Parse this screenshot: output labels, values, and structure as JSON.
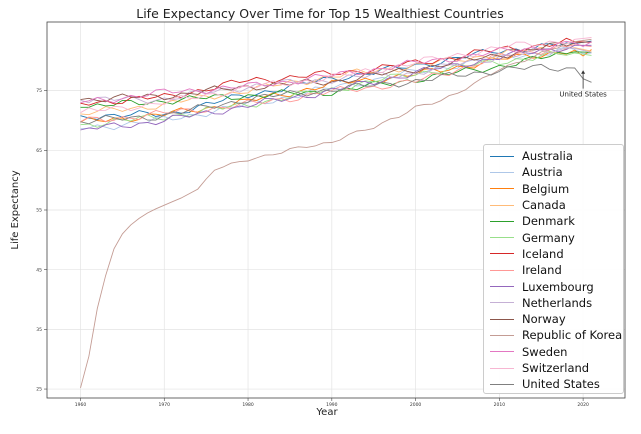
{
  "chart_data": {
    "type": "line",
    "title": "Life Expectancy Over Time for Top 15 Wealthiest Countries",
    "xlabel": "Year",
    "ylabel": "Life Expectancy",
    "xlim": [
      1956,
      2025
    ],
    "ylim": [
      23.5,
      86.5
    ],
    "x_ticks": [
      1960,
      1970,
      1980,
      1990,
      2000,
      2010,
      2020
    ],
    "y_ticks": [
      25,
      35,
      45,
      55,
      65,
      75
    ],
    "grid": true,
    "legend_position": "lower-right",
    "annotation": {
      "text": "United States",
      "x": 2020,
      "y": 78.5,
      "text_x": 2020,
      "text_y": 74
    },
    "series": [
      {
        "name": "Australia",
        "color": "#1f77b4",
        "points": [
          [
            1960,
            70.8
          ],
          [
            1970,
            71.0
          ],
          [
            1980,
            74.3
          ],
          [
            1990,
            77.0
          ],
          [
            2000,
            79.2
          ],
          [
            2010,
            81.7
          ],
          [
            2019,
            82.9
          ],
          [
            2021,
            83.3
          ]
        ]
      },
      {
        "name": "Austria",
        "color": "#aec7e8",
        "points": [
          [
            1960,
            68.6
          ],
          [
            1970,
            70.1
          ],
          [
            1980,
            72.6
          ],
          [
            1990,
            75.5
          ],
          [
            2000,
            78.1
          ],
          [
            2010,
            80.6
          ],
          [
            2019,
            81.9
          ],
          [
            2020,
            81.2
          ],
          [
            2021,
            81.3
          ]
        ]
      },
      {
        "name": "Belgium",
        "color": "#ff7f0e",
        "points": [
          [
            1960,
            69.7
          ],
          [
            1970,
            71.0
          ],
          [
            1980,
            73.2
          ],
          [
            1990,
            76.1
          ],
          [
            2000,
            77.7
          ],
          [
            2010,
            80.2
          ],
          [
            2019,
            81.8
          ],
          [
            2020,
            80.8
          ],
          [
            2021,
            81.9
          ]
        ]
      },
      {
        "name": "Canada",
        "color": "#ffbb78",
        "points": [
          [
            1960,
            71.1
          ],
          [
            1970,
            72.7
          ],
          [
            1980,
            75.1
          ],
          [
            1990,
            77.4
          ],
          [
            2000,
            79.2
          ],
          [
            2010,
            81.2
          ],
          [
            2019,
            82.2
          ],
          [
            2021,
            81.6
          ]
        ]
      },
      {
        "name": "Denmark",
        "color": "#2ca02c",
        "points": [
          [
            1960,
            72.2
          ],
          [
            1970,
            73.3
          ],
          [
            1980,
            74.2
          ],
          [
            1990,
            74.8
          ],
          [
            2000,
            76.9
          ],
          [
            2010,
            79.1
          ],
          [
            2019,
            81.5
          ],
          [
            2021,
            81.4
          ]
        ]
      },
      {
        "name": "Germany",
        "color": "#98df8a",
        "points": [
          [
            1960,
            69.3
          ],
          [
            1970,
            70.6
          ],
          [
            1980,
            72.7
          ],
          [
            1990,
            75.2
          ],
          [
            2000,
            77.9
          ],
          [
            2010,
            79.9
          ],
          [
            2019,
            81.3
          ],
          [
            2021,
            80.9
          ]
        ]
      },
      {
        "name": "Iceland",
        "color": "#d62728",
        "points": [
          [
            1960,
            72.9
          ],
          [
            1970,
            73.9
          ],
          [
            1980,
            76.7
          ],
          [
            1990,
            77.8
          ],
          [
            2000,
            79.6
          ],
          [
            2010,
            81.9
          ],
          [
            2019,
            83.2
          ],
          [
            2021,
            83.1
          ]
        ]
      },
      {
        "name": "Ireland",
        "color": "#ff9896",
        "points": [
          [
            1960,
            69.8
          ],
          [
            1970,
            71.2
          ],
          [
            1980,
            72.7
          ],
          [
            1990,
            74.8
          ],
          [
            2000,
            76.5
          ],
          [
            2010,
            80.7
          ],
          [
            2019,
            82.7
          ],
          [
            2021,
            82.4
          ]
        ]
      },
      {
        "name": "Luxembourg",
        "color": "#9467bd",
        "points": [
          [
            1960,
            68.4
          ],
          [
            1970,
            70.0
          ],
          [
            1980,
            72.5
          ],
          [
            1990,
            75.0
          ],
          [
            2000,
            78.0
          ],
          [
            2010,
            80.6
          ],
          [
            2019,
            82.6
          ],
          [
            2021,
            82.6
          ]
        ]
      },
      {
        "name": "Netherlands",
        "color": "#c5b0d5",
        "points": [
          [
            1960,
            73.4
          ],
          [
            1970,
            73.6
          ],
          [
            1980,
            75.7
          ],
          [
            1990,
            76.9
          ],
          [
            2000,
            78.0
          ],
          [
            2010,
            80.7
          ],
          [
            2019,
            82.1
          ],
          [
            2021,
            81.4
          ]
        ]
      },
      {
        "name": "Norway",
        "color": "#8c564b",
        "points": [
          [
            1960,
            73.5
          ],
          [
            1970,
            74.1
          ],
          [
            1980,
            75.7
          ],
          [
            1990,
            76.5
          ],
          [
            2000,
            78.6
          ],
          [
            2010,
            81.0
          ],
          [
            2019,
            83.0
          ],
          [
            2021,
            83.2
          ]
        ]
      },
      {
        "name": "Republic of Korea",
        "color": "#c49c94",
        "points": [
          [
            1960,
            25.2
          ],
          [
            1961,
            30.5
          ],
          [
            1962,
            38.5
          ],
          [
            1963,
            44.0
          ],
          [
            1964,
            48.5
          ],
          [
            1965,
            51.0
          ],
          [
            1966,
            52.5
          ],
          [
            1967,
            53.6
          ],
          [
            1968,
            54.5
          ],
          [
            1969,
            55.2
          ],
          [
            1970,
            55.8
          ],
          [
            1972,
            57.0
          ],
          [
            1974,
            58.5
          ],
          [
            1975,
            60.2
          ],
          [
            1976,
            61.8
          ],
          [
            1978,
            62.5
          ],
          [
            1980,
            63.4
          ],
          [
            1982,
            64.1
          ],
          [
            1985,
            65.2
          ],
          [
            1988,
            65.7
          ],
          [
            1990,
            66.2
          ],
          [
            1992,
            67.8
          ],
          [
            1995,
            68.9
          ],
          [
            1998,
            70.5
          ],
          [
            2000,
            72.2
          ],
          [
            2003,
            73.5
          ],
          [
            2005,
            74.6
          ],
          [
            2008,
            76.8
          ],
          [
            2010,
            78.6
          ],
          [
            2015,
            81.3
          ],
          [
            2019,
            83.2
          ],
          [
            2021,
            83.6
          ]
        ]
      },
      {
        "name": "Sweden",
        "color": "#e377c2",
        "points": [
          [
            1960,
            73.0
          ],
          [
            1970,
            74.7
          ],
          [
            1980,
            75.7
          ],
          [
            1990,
            77.5
          ],
          [
            2000,
            79.6
          ],
          [
            2010,
            81.5
          ],
          [
            2019,
            83.0
          ],
          [
            2020,
            82.4
          ],
          [
            2021,
            83.2
          ]
        ]
      },
      {
        "name": "Switzerland",
        "color": "#f7b6d2",
        "points": [
          [
            1960,
            71.3
          ],
          [
            1970,
            73.0
          ],
          [
            1980,
            75.5
          ],
          [
            1990,
            77.2
          ],
          [
            2000,
            79.7
          ],
          [
            2010,
            82.2
          ],
          [
            2019,
            83.6
          ],
          [
            2021,
            83.9
          ]
        ]
      },
      {
        "name": "United States",
        "color": "#7f7f7f",
        "points": [
          [
            1960,
            69.8
          ],
          [
            1970,
            70.8
          ],
          [
            1980,
            73.6
          ],
          [
            1990,
            75.2
          ],
          [
            2000,
            76.6
          ],
          [
            2010,
            78.5
          ],
          [
            2014,
            78.8
          ],
          [
            2019,
            78.8
          ],
          [
            2020,
            77.0
          ],
          [
            2021,
            76.4
          ]
        ]
      }
    ]
  }
}
